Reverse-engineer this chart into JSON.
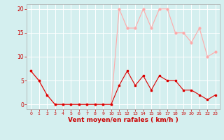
{
  "hours": [
    0,
    1,
    2,
    3,
    4,
    5,
    6,
    7,
    8,
    9,
    10,
    11,
    12,
    13,
    14,
    15,
    16,
    17,
    18,
    19,
    20,
    21,
    22,
    23
  ],
  "wind_mean": [
    7,
    5,
    2,
    0,
    0,
    0,
    0,
    0,
    0,
    0,
    0,
    4,
    7,
    4,
    6,
    3,
    6,
    5,
    5,
    3,
    3,
    2,
    1,
    2
  ],
  "wind_gust": [
    7,
    5,
    2,
    0,
    0,
    0,
    0,
    0,
    0,
    0,
    0,
    20,
    16,
    16,
    20,
    16,
    20,
    20,
    15,
    15,
    13,
    16,
    10,
    11
  ],
  "bg_color": "#d4efef",
  "grid_color": "#ffffff",
  "line_mean_color": "#dd0000",
  "line_gust_color": "#ffaaaa",
  "xlabel": "Vent moyen/en rafales ( km/h )",
  "ylim": [
    -1,
    21
  ],
  "yticks": [
    0,
    5,
    10,
    15,
    20
  ],
  "xlabel_color": "#cc0000",
  "tick_color": "#cc0000",
  "marker_mean": "s",
  "marker_gust": "D",
  "marker_size": 2.0,
  "line_width": 0.8
}
